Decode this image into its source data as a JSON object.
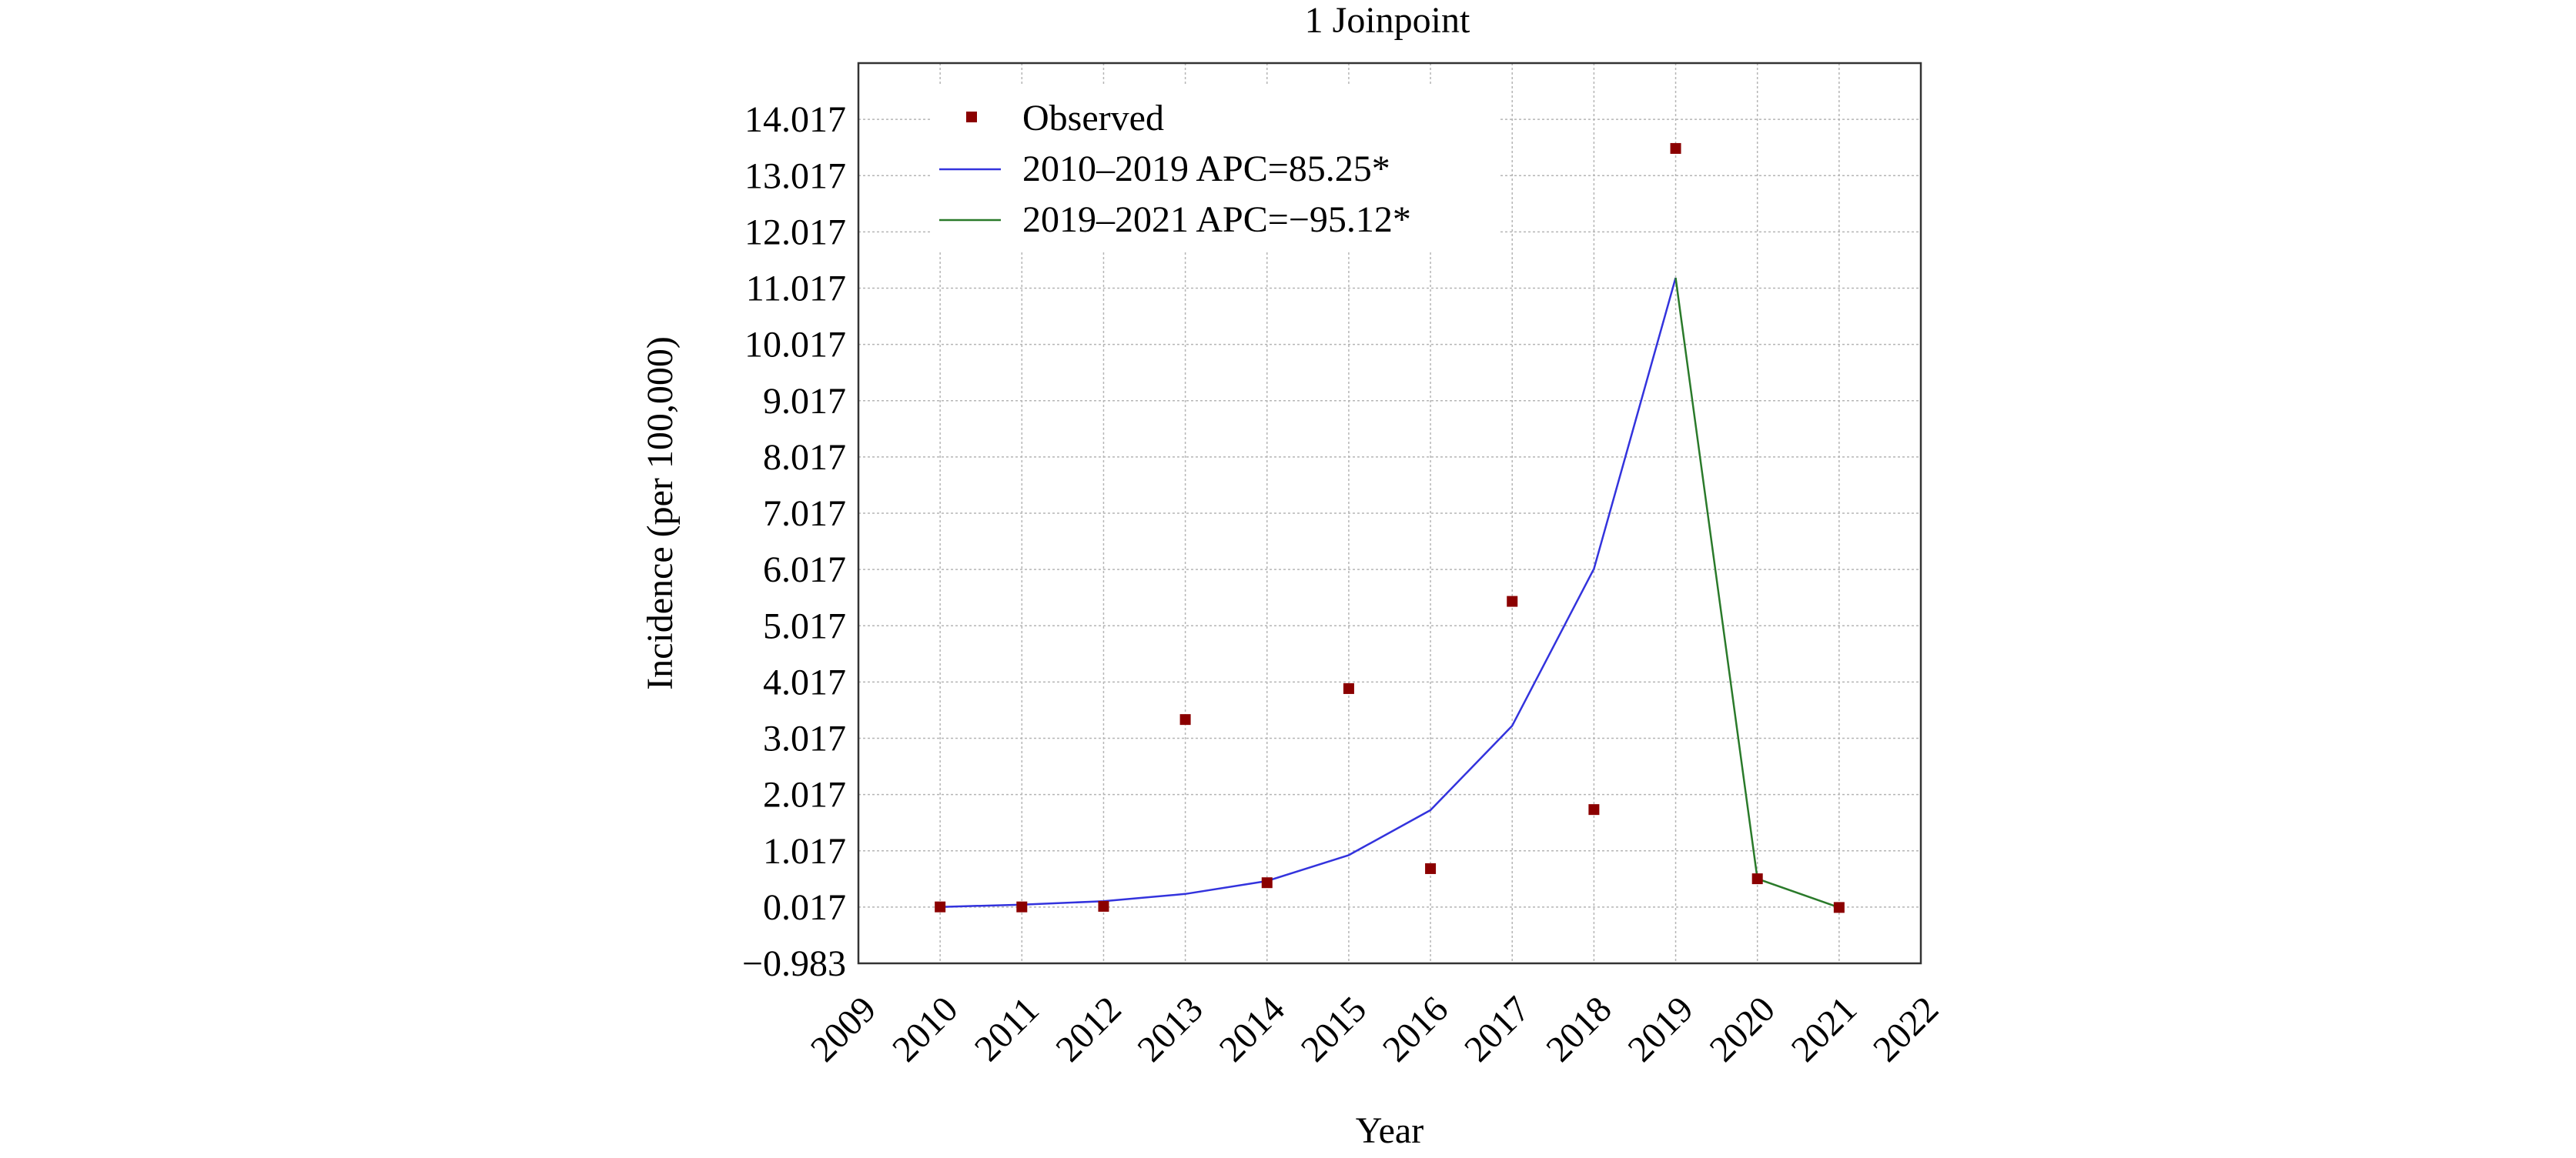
{
  "chart_data": {
    "type": "line",
    "title": "1 Joinpoint",
    "xlabel": "Year",
    "ylabel": "Incidence (per 100,000)",
    "xlim": [
      2009,
      2022
    ],
    "ylim": [
      -0.983,
      15.017
    ],
    "x_ticks": [
      2009,
      2010,
      2011,
      2012,
      2013,
      2014,
      2015,
      2016,
      2017,
      2018,
      2019,
      2020,
      2021,
      2022
    ],
    "x_tick_labels": [
      "2009",
      "2010",
      "2011",
      "2012",
      "2013",
      "2014",
      "2015",
      "2016",
      "2017",
      "2018",
      "2019",
      "2020",
      "2021",
      "2022"
    ],
    "y_ticks": [
      -0.983,
      0.017,
      1.017,
      2.017,
      3.017,
      4.017,
      5.017,
      6.017,
      7.017,
      8.017,
      9.017,
      10.017,
      11.017,
      12.017,
      13.017,
      14.017
    ],
    "y_tick_labels": [
      "−0.983",
      "0.017",
      "1.017",
      "2.017",
      "3.017",
      "4.017",
      "5.017",
      "6.017",
      "7.017",
      "8.017",
      "9.017",
      "10.017",
      "11.017",
      "12.017",
      "13.017",
      "14.017"
    ],
    "grid": true,
    "legend_position": "top-left",
    "series": [
      {
        "name": "Observed",
        "kind": "scatter",
        "color": "#8b0000",
        "x": [
          2010,
          2011,
          2012,
          2013,
          2014,
          2015,
          2016,
          2017,
          2018,
          2019,
          2020,
          2021
        ],
        "y": [
          0.02,
          0.02,
          0.03,
          3.35,
          0.45,
          3.9,
          0.7,
          5.45,
          1.75,
          13.5,
          0.52,
          0.01
        ]
      },
      {
        "name": "2010–2019 APC=85.25*",
        "kind": "line",
        "color": "#3333dd",
        "x": [
          2010,
          2011,
          2012,
          2013,
          2014,
          2015,
          2016,
          2017,
          2018,
          2019
        ],
        "y": [
          0.02,
          0.06,
          0.12,
          0.25,
          0.48,
          0.94,
          1.74,
          3.24,
          6.03,
          11.2
        ]
      },
      {
        "name": "2019–2021 APC=−95.12*",
        "kind": "line",
        "color": "#2a7a2a",
        "x": [
          2019,
          2020,
          2021
        ],
        "y": [
          11.2,
          0.52,
          0.01
        ]
      }
    ]
  }
}
